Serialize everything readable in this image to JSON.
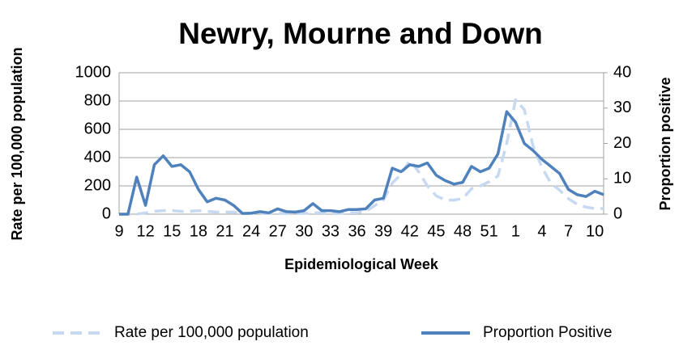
{
  "chart_data": {
    "type": "line",
    "title": "Newry, Mourne and Down",
    "x_label": "Epidemiological Week",
    "y_label": "Rate per 100,000 population",
    "y2_label": "Proportion positive",
    "categories": [
      "9",
      null,
      null,
      "12",
      null,
      null,
      "15",
      null,
      null,
      "18",
      null,
      null,
      "21",
      null,
      null,
      "24",
      null,
      null,
      "27",
      null,
      null,
      "30",
      null,
      null,
      "33",
      null,
      null,
      "36",
      null,
      null,
      "39",
      null,
      null,
      "42",
      null,
      null,
      "45",
      null,
      null,
      "48",
      null,
      null,
      "51",
      null,
      null,
      "1",
      null,
      null,
      "4",
      null,
      null,
      "7",
      null,
      null,
      "10",
      null
    ],
    "series": [
      {
        "name": "Rate per 100,000 population",
        "color": "#c6d9f1",
        "dashed": true,
        "values": [
          0,
          0,
          0,
          10,
          20,
          25,
          25,
          20,
          20,
          25,
          20,
          15,
          15,
          15,
          5,
          5,
          5,
          5,
          5,
          5,
          5,
          5,
          10,
          10,
          5,
          5,
          10,
          10,
          20,
          60,
          100,
          220,
          280,
          380,
          300,
          200,
          130,
          100,
          100,
          110,
          180,
          200,
          230,
          270,
          500,
          810,
          740,
          480,
          330,
          220,
          170,
          110,
          70,
          50,
          40,
          40
        ]
      },
      {
        "name": "Proportion Positive",
        "color": "#4f81bd",
        "axis": "y2",
        "values": [
          0,
          0,
          10.5,
          2.5,
          14,
          16.5,
          13.5,
          14,
          12,
          7,
          3.5,
          4.5,
          4,
          2.5,
          0.2,
          0.3,
          0.7,
          0.4,
          1.5,
          0.7,
          0.6,
          1,
          3,
          1,
          1,
          0.7,
          1.3,
          1.3,
          1.5,
          4,
          4.5,
          13,
          12,
          14,
          13.5,
          14.5,
          11,
          9.5,
          8.5,
          9,
          13.5,
          12,
          13,
          17,
          29,
          26,
          20,
          18,
          15.5,
          13.5,
          11.5,
          7,
          5.5,
          5,
          6.5,
          5.5
        ]
      }
    ],
    "ylim": [
      0,
      1000
    ],
    "yticks": [
      0,
      200,
      400,
      600,
      800,
      1000
    ],
    "y2lim": [
      0,
      40
    ],
    "y2ticks": [
      0,
      10,
      20,
      30,
      40
    ],
    "grid": true
  }
}
